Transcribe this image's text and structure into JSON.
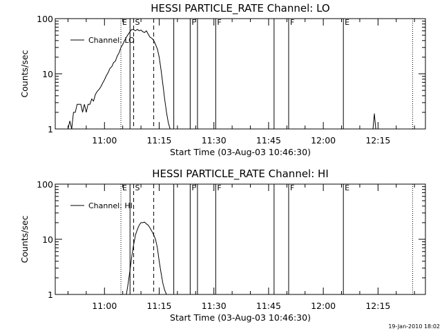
{
  "footer_text": "19-Jan-2010 18:02",
  "chart_data": [
    {
      "type": "line",
      "title": "HESSI PARTICLE_RATE Channel: LO",
      "xlabel": "Start Time (03-Aug-03 10:46:30)",
      "ylabel": "Counts/sec",
      "y_scale": "log",
      "ylim": [
        1,
        100
      ],
      "xlim": [
        "10:46:30",
        "12:28:00"
      ],
      "x_ticks": [
        "11:00",
        "11:15",
        "11:30",
        "11:45",
        "12:00",
        "12:15"
      ],
      "y_ticks": [
        "1",
        "10",
        "100"
      ],
      "legend": {
        "label": "Channel: LO",
        "placement": "top-left"
      },
      "grid": false,
      "markers": [
        {
          "time": "11:04:30",
          "style": "dotted",
          "label": "E"
        },
        {
          "time": "11:07:00",
          "style": "solid",
          "label": ""
        },
        {
          "time": "11:08:00",
          "style": "dashed",
          "label": "S"
        },
        {
          "time": "11:13:30",
          "style": "dashed",
          "label": ""
        },
        {
          "time": "11:19:00",
          "style": "solid",
          "label": ""
        },
        {
          "time": "11:23:30",
          "style": "solid",
          "label": "F"
        },
        {
          "time": "11:25:30",
          "style": "solid",
          "label": ""
        },
        {
          "time": "11:30:30",
          "style": "solid",
          "label": "F"
        },
        {
          "time": "11:46:30",
          "style": "solid",
          "label": ""
        },
        {
          "time": "11:50:30",
          "style": "solid",
          "label": "F"
        },
        {
          "time": "12:05:30",
          "style": "solid",
          "label": "E"
        },
        {
          "time": "12:24:30",
          "style": "dotted",
          "label": ""
        }
      ],
      "series": [
        {
          "segments": [
            {
              "x": [
                "10:50:00",
                "10:50:30",
                "10:51:00",
                "10:51:30",
                "10:52:00",
                "10:52:30",
                "10:53:00",
                "10:53:30",
                "10:54:00",
                "10:54:30",
                "10:55:00",
                "10:55:30",
                "10:56:00",
                "10:56:30",
                "10:57:00",
                "10:57:30",
                "10:58:00",
                "10:58:30",
                "10:59:00",
                "10:59:30",
                "11:00:00",
                "11:00:30",
                "11:01:00",
                "11:01:30",
                "11:02:00",
                "11:02:30",
                "11:03:00",
                "11:03:30",
                "11:04:00",
                "11:04:30",
                "11:05:00",
                "11:05:30",
                "11:06:00",
                "11:06:30",
                "11:07:00",
                "11:07:30",
                "11:08:00",
                "11:08:30",
                "11:09:00",
                "11:09:30",
                "11:10:00",
                "11:10:30",
                "11:11:00",
                "11:11:30",
                "11:12:00",
                "11:12:30",
                "11:13:00",
                "11:13:30",
                "11:14:00",
                "11:14:30",
                "11:15:00",
                "11:15:30",
                "11:16:00",
                "11:16:30",
                "11:17:00",
                "11:17:30",
                "11:18:00"
              ],
              "y": [
                1,
                1.4,
                1,
                2,
                2,
                2.8,
                2.8,
                2.8,
                2,
                2.8,
                2,
                2.8,
                2.8,
                3.5,
                3.2,
                4.2,
                4.8,
                5.2,
                5.8,
                6.8,
                7.8,
                9.2,
                10.5,
                12.5,
                13.5,
                16,
                17,
                21,
                24,
                30,
                34,
                40,
                46,
                52,
                58,
                64,
                63,
                60,
                64,
                60,
                62,
                58,
                56,
                60,
                52,
                46,
                44,
                40,
                34,
                28,
                20,
                12,
                6.5,
                3.5,
                2,
                1.3,
                1
              ]
            }
          ]
        }
      ],
      "spikes": [
        {
          "time": "12:14:00",
          "peak": 1.9
        }
      ]
    },
    {
      "type": "line",
      "title": "HESSI PARTICLE_RATE Channel: HI",
      "xlabel": "Start Time (03-Aug-03 10:46:30)",
      "ylabel": "Counts/sec",
      "y_scale": "log",
      "ylim": [
        1,
        100
      ],
      "xlim": [
        "10:46:30",
        "12:28:00"
      ],
      "x_ticks": [
        "11:00",
        "11:15",
        "11:30",
        "11:45",
        "12:00",
        "12:15"
      ],
      "y_ticks": [
        "1",
        "10",
        "100"
      ],
      "legend": {
        "label": "Channel: HI",
        "placement": "top-left"
      },
      "grid": false,
      "markers": [
        {
          "time": "11:04:30",
          "style": "dotted",
          "label": "E"
        },
        {
          "time": "11:07:00",
          "style": "solid",
          "label": ""
        },
        {
          "time": "11:08:00",
          "style": "dashed",
          "label": "S"
        },
        {
          "time": "11:13:30",
          "style": "dashed",
          "label": ""
        },
        {
          "time": "11:19:00",
          "style": "solid",
          "label": ""
        },
        {
          "time": "11:23:30",
          "style": "solid",
          "label": "F"
        },
        {
          "time": "11:25:30",
          "style": "solid",
          "label": ""
        },
        {
          "time": "11:30:30",
          "style": "solid",
          "label": "F"
        },
        {
          "time": "11:46:30",
          "style": "solid",
          "label": ""
        },
        {
          "time": "11:50:30",
          "style": "solid",
          "label": "F"
        },
        {
          "time": "12:05:30",
          "style": "solid",
          "label": "E"
        },
        {
          "time": "12:24:30",
          "style": "dotted",
          "label": ""
        }
      ],
      "series": [
        {
          "segments": [
            {
              "x": [
                "11:06:00",
                "11:06:30",
                "11:07:00",
                "11:07:30",
                "11:08:00",
                "11:08:30",
                "11:09:00",
                "11:09:30",
                "11:10:00",
                "11:10:30",
                "11:11:00",
                "11:11:30",
                "11:12:00",
                "11:12:30",
                "11:13:00",
                "11:13:30",
                "11:14:00",
                "11:14:30",
                "11:15:00",
                "11:15:30",
                "11:16:00",
                "11:16:30",
                "11:17:00"
              ],
              "y": [
                1,
                1.6,
                2.8,
                5,
                8,
                12,
                15,
                18,
                20,
                20,
                20.5,
                19,
                18,
                16,
                14,
                12,
                10,
                7,
                4,
                2.5,
                1.6,
                1.2,
                1
              ]
            }
          ]
        }
      ],
      "spikes": []
    }
  ]
}
